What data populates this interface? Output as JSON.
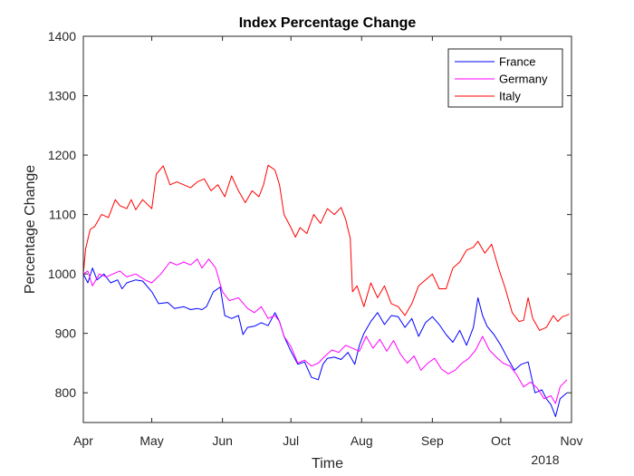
{
  "chart_data": {
    "type": "line",
    "title": "Index Percentage Change",
    "xlabel": "Time",
    "ylabel": "Percentage Change",
    "year_label": "2018",
    "xlim": [
      "2018-04-01",
      "2018-11-01"
    ],
    "ylim": [
      750,
      1400
    ],
    "yticks": [
      800,
      900,
      1000,
      1100,
      1200,
      1300,
      1400
    ],
    "xticks": [
      {
        "date": "2018-04-01",
        "label": "Apr"
      },
      {
        "date": "2018-05-01",
        "label": "May"
      },
      {
        "date": "2018-06-01",
        "label": "Jun"
      },
      {
        "date": "2018-07-01",
        "label": "Jul"
      },
      {
        "date": "2018-08-01",
        "label": "Aug"
      },
      {
        "date": "2018-09-01",
        "label": "Sep"
      },
      {
        "date": "2018-10-01",
        "label": "Oct"
      },
      {
        "date": "2018-11-01",
        "label": "Nov"
      }
    ],
    "grid": false,
    "legend_position": "top-right",
    "series": [
      {
        "name": "France",
        "color": "#0000ff",
        "points": [
          [
            "2018-04-01",
            1000
          ],
          [
            "2018-04-03",
            985
          ],
          [
            "2018-04-05",
            1010
          ],
          [
            "2018-04-07",
            990
          ],
          [
            "2018-04-10",
            1000
          ],
          [
            "2018-04-13",
            985
          ],
          [
            "2018-04-16",
            990
          ],
          [
            "2018-04-18",
            975
          ],
          [
            "2018-04-20",
            985
          ],
          [
            "2018-04-24",
            990
          ],
          [
            "2018-04-27",
            988
          ],
          [
            "2018-05-01",
            970
          ],
          [
            "2018-05-04",
            950
          ],
          [
            "2018-05-08",
            952
          ],
          [
            "2018-05-11",
            942
          ],
          [
            "2018-05-15",
            945
          ],
          [
            "2018-05-18",
            940
          ],
          [
            "2018-05-21",
            942
          ],
          [
            "2018-05-23",
            940
          ],
          [
            "2018-05-25",
            945
          ],
          [
            "2018-05-28",
            970
          ],
          [
            "2018-05-31",
            978
          ],
          [
            "2018-06-02",
            930
          ],
          [
            "2018-06-05",
            925
          ],
          [
            "2018-06-08",
            930
          ],
          [
            "2018-06-10",
            898
          ],
          [
            "2018-06-12",
            910
          ],
          [
            "2018-06-15",
            912
          ],
          [
            "2018-06-18",
            918
          ],
          [
            "2018-06-21",
            913
          ],
          [
            "2018-06-24",
            935
          ],
          [
            "2018-06-26",
            920
          ],
          [
            "2018-06-28",
            895
          ],
          [
            "2018-07-01",
            870
          ],
          [
            "2018-07-04",
            848
          ],
          [
            "2018-07-07",
            852
          ],
          [
            "2018-07-10",
            826
          ],
          [
            "2018-07-13",
            822
          ],
          [
            "2018-07-15",
            848
          ],
          [
            "2018-07-17",
            858
          ],
          [
            "2018-07-20",
            860
          ],
          [
            "2018-07-23",
            856
          ],
          [
            "2018-07-26",
            868
          ],
          [
            "2018-07-29",
            848
          ],
          [
            "2018-07-31",
            880
          ],
          [
            "2018-08-02",
            900
          ],
          [
            "2018-08-05",
            920
          ],
          [
            "2018-08-08",
            935
          ],
          [
            "2018-08-11",
            915
          ],
          [
            "2018-08-14",
            930
          ],
          [
            "2018-08-17",
            928
          ],
          [
            "2018-08-20",
            910
          ],
          [
            "2018-08-23",
            925
          ],
          [
            "2018-08-26",
            895
          ],
          [
            "2018-08-29",
            918
          ],
          [
            "2018-09-01",
            928
          ],
          [
            "2018-09-04",
            915
          ],
          [
            "2018-09-07",
            898
          ],
          [
            "2018-09-10",
            885
          ],
          [
            "2018-09-13",
            905
          ],
          [
            "2018-09-16",
            880
          ],
          [
            "2018-09-19",
            910
          ],
          [
            "2018-09-21",
            960
          ],
          [
            "2018-09-23",
            930
          ],
          [
            "2018-09-25",
            912
          ],
          [
            "2018-09-28",
            898
          ],
          [
            "2018-10-01",
            880
          ],
          [
            "2018-10-04",
            858
          ],
          [
            "2018-10-07",
            838
          ],
          [
            "2018-10-10",
            848
          ],
          [
            "2018-10-13",
            852
          ],
          [
            "2018-10-16",
            800
          ],
          [
            "2018-10-19",
            805
          ],
          [
            "2018-10-21",
            790
          ],
          [
            "2018-10-23",
            780
          ],
          [
            "2018-10-25",
            760
          ],
          [
            "2018-10-27",
            790
          ],
          [
            "2018-10-30",
            800
          ]
        ]
      },
      {
        "name": "Germany",
        "color": "#ff00ff",
        "points": [
          [
            "2018-04-01",
            1000
          ],
          [
            "2018-04-03",
            1005
          ],
          [
            "2018-04-05",
            980
          ],
          [
            "2018-04-08",
            1000
          ],
          [
            "2018-04-11",
            995
          ],
          [
            "2018-04-14",
            1000
          ],
          [
            "2018-04-17",
            1005
          ],
          [
            "2018-04-20",
            995
          ],
          [
            "2018-04-24",
            1000
          ],
          [
            "2018-04-28",
            990
          ],
          [
            "2018-05-01",
            985
          ],
          [
            "2018-05-05",
            1000
          ],
          [
            "2018-05-09",
            1020
          ],
          [
            "2018-05-12",
            1015
          ],
          [
            "2018-05-15",
            1020
          ],
          [
            "2018-05-18",
            1015
          ],
          [
            "2018-05-21",
            1025
          ],
          [
            "2018-05-23",
            1010
          ],
          [
            "2018-05-26",
            1025
          ],
          [
            "2018-05-29",
            1010
          ],
          [
            "2018-06-01",
            970
          ],
          [
            "2018-06-04",
            955
          ],
          [
            "2018-06-08",
            960
          ],
          [
            "2018-06-12",
            942
          ],
          [
            "2018-06-15",
            935
          ],
          [
            "2018-06-18",
            945
          ],
          [
            "2018-06-21",
            925
          ],
          [
            "2018-06-24",
            930
          ],
          [
            "2018-06-26",
            920
          ],
          [
            "2018-06-28",
            895
          ],
          [
            "2018-07-01",
            878
          ],
          [
            "2018-07-04",
            850
          ],
          [
            "2018-07-07",
            855
          ],
          [
            "2018-07-10",
            845
          ],
          [
            "2018-07-13",
            850
          ],
          [
            "2018-07-16",
            862
          ],
          [
            "2018-07-19",
            872
          ],
          [
            "2018-07-22",
            868
          ],
          [
            "2018-07-25",
            880
          ],
          [
            "2018-07-28",
            875
          ],
          [
            "2018-07-31",
            870
          ],
          [
            "2018-08-03",
            895
          ],
          [
            "2018-08-06",
            875
          ],
          [
            "2018-08-09",
            890
          ],
          [
            "2018-08-12",
            870
          ],
          [
            "2018-08-15",
            888
          ],
          [
            "2018-08-18",
            865
          ],
          [
            "2018-08-21",
            850
          ],
          [
            "2018-08-24",
            862
          ],
          [
            "2018-08-27",
            838
          ],
          [
            "2018-08-30",
            850
          ],
          [
            "2018-09-02",
            858
          ],
          [
            "2018-09-05",
            840
          ],
          [
            "2018-09-08",
            832
          ],
          [
            "2018-09-11",
            838
          ],
          [
            "2018-09-14",
            850
          ],
          [
            "2018-09-17",
            858
          ],
          [
            "2018-09-20",
            872
          ],
          [
            "2018-09-23",
            895
          ],
          [
            "2018-09-26",
            872
          ],
          [
            "2018-09-29",
            860
          ],
          [
            "2018-10-02",
            850
          ],
          [
            "2018-10-05",
            845
          ],
          [
            "2018-10-08",
            830
          ],
          [
            "2018-10-11",
            810
          ],
          [
            "2018-10-14",
            818
          ],
          [
            "2018-10-17",
            808
          ],
          [
            "2018-10-20",
            790
          ],
          [
            "2018-10-23",
            795
          ],
          [
            "2018-10-25",
            782
          ],
          [
            "2018-10-27",
            810
          ],
          [
            "2018-10-30",
            822
          ]
        ]
      },
      {
        "name": "Italy",
        "color": "#ff0000",
        "points": [
          [
            "2018-04-01",
            1000
          ],
          [
            "2018-04-02",
            1042
          ],
          [
            "2018-04-04",
            1075
          ],
          [
            "2018-04-06",
            1080
          ],
          [
            "2018-04-09",
            1100
          ],
          [
            "2018-04-12",
            1095
          ],
          [
            "2018-04-15",
            1125
          ],
          [
            "2018-04-17",
            1115
          ],
          [
            "2018-04-20",
            1110
          ],
          [
            "2018-04-22",
            1125
          ],
          [
            "2018-04-24",
            1108
          ],
          [
            "2018-04-27",
            1125
          ],
          [
            "2018-05-01",
            1110
          ],
          [
            "2018-05-03",
            1168
          ],
          [
            "2018-05-06",
            1182
          ],
          [
            "2018-05-09",
            1150
          ],
          [
            "2018-05-12",
            1155
          ],
          [
            "2018-05-15",
            1150
          ],
          [
            "2018-05-18",
            1145
          ],
          [
            "2018-05-21",
            1155
          ],
          [
            "2018-05-24",
            1160
          ],
          [
            "2018-05-27",
            1140
          ],
          [
            "2018-05-30",
            1150
          ],
          [
            "2018-06-02",
            1130
          ],
          [
            "2018-06-05",
            1165
          ],
          [
            "2018-06-08",
            1140
          ],
          [
            "2018-06-11",
            1120
          ],
          [
            "2018-06-14",
            1140
          ],
          [
            "2018-06-17",
            1130
          ],
          [
            "2018-06-19",
            1150
          ],
          [
            "2018-06-21",
            1183
          ],
          [
            "2018-06-24",
            1175
          ],
          [
            "2018-06-26",
            1150
          ],
          [
            "2018-06-28",
            1100
          ],
          [
            "2018-07-01",
            1078
          ],
          [
            "2018-07-03",
            1062
          ],
          [
            "2018-07-05",
            1078
          ],
          [
            "2018-07-08",
            1068
          ],
          [
            "2018-07-11",
            1100
          ],
          [
            "2018-07-14",
            1085
          ],
          [
            "2018-07-17",
            1110
          ],
          [
            "2018-07-20",
            1100
          ],
          [
            "2018-07-23",
            1112
          ],
          [
            "2018-07-25",
            1092
          ],
          [
            "2018-07-27",
            1060
          ],
          [
            "2018-07-28",
            970
          ],
          [
            "2018-07-30",
            980
          ],
          [
            "2018-08-02",
            945
          ],
          [
            "2018-08-05",
            985
          ],
          [
            "2018-08-08",
            960
          ],
          [
            "2018-08-11",
            980
          ],
          [
            "2018-08-14",
            950
          ],
          [
            "2018-08-17",
            945
          ],
          [
            "2018-08-20",
            930
          ],
          [
            "2018-08-23",
            950
          ],
          [
            "2018-08-26",
            980
          ],
          [
            "2018-08-29",
            990
          ],
          [
            "2018-09-01",
            1000
          ],
          [
            "2018-09-04",
            975
          ],
          [
            "2018-09-07",
            975
          ],
          [
            "2018-09-10",
            1010
          ],
          [
            "2018-09-13",
            1020
          ],
          [
            "2018-09-16",
            1040
          ],
          [
            "2018-09-19",
            1045
          ],
          [
            "2018-09-21",
            1055
          ],
          [
            "2018-09-24",
            1035
          ],
          [
            "2018-09-27",
            1050
          ],
          [
            "2018-09-30",
            1010
          ],
          [
            "2018-10-03",
            975
          ],
          [
            "2018-10-06",
            935
          ],
          [
            "2018-10-09",
            920
          ],
          [
            "2018-10-11",
            922
          ],
          [
            "2018-10-13",
            960
          ],
          [
            "2018-10-15",
            925
          ],
          [
            "2018-10-18",
            905
          ],
          [
            "2018-10-21",
            910
          ],
          [
            "2018-10-24",
            930
          ],
          [
            "2018-10-26",
            920
          ],
          [
            "2018-10-28",
            928
          ],
          [
            "2018-10-31",
            932
          ]
        ]
      }
    ]
  }
}
